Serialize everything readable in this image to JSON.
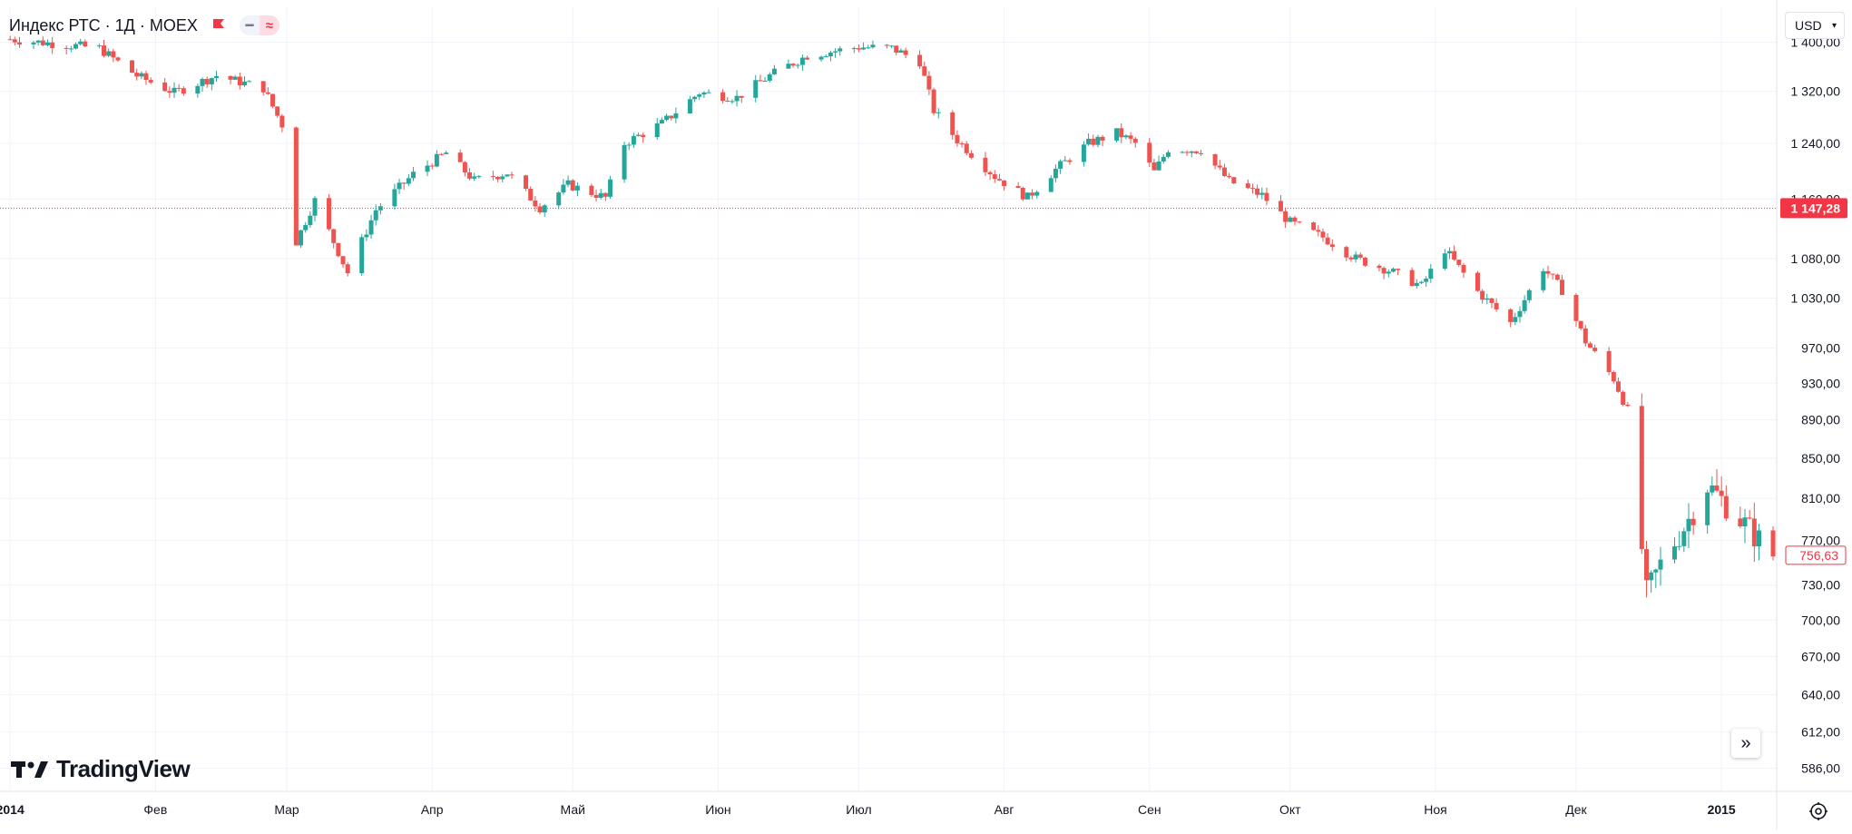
{
  "header": {
    "symbol_title": "Индекс РТС · 1Д · MOEX",
    "currency_button": "USD"
  },
  "branding": {
    "logo_text": "TradingView"
  },
  "colors": {
    "up": "#26a69a",
    "down": "#ef5350",
    "grid": "#f0f3fa",
    "price_line": "#f23645",
    "axis_text": "#131722"
  },
  "icons": {
    "flag": "flag-icon",
    "visibility": "eye-icon",
    "approx": "approx-icon",
    "currency_chevron": "chevron-down-icon",
    "scroll": "double-chevron-right-icon",
    "settings": "gear-icon"
  },
  "chart_data": {
    "type": "candlestick",
    "title": "Индекс РТС · 1Д · MOEX",
    "currency": "USD",
    "y_scale": "log",
    "grid": true,
    "y_ticks": [
      "1 400,00",
      "1 320,00",
      "1 240,00",
      "1 160,00",
      "1 080,00",
      "1 030,00",
      "970,00",
      "930,00",
      "890,00",
      "850,00",
      "810,00",
      "770,00",
      "730,00",
      "700,00",
      "670,00",
      "640,00",
      "612,00",
      "586,00"
    ],
    "x_labels": [
      "2014",
      "Фев",
      "Мар",
      "Апр",
      "Май",
      "Июн",
      "Июл",
      "Авг",
      "Сен",
      "Окт",
      "Ноя",
      "Дек",
      "2015"
    ],
    "price_labels": [
      {
        "value": 1147.28,
        "text": "1 147,28",
        "style": "filled"
      },
      {
        "value": 756.63,
        "text": "756,63",
        "style": "outline"
      }
    ],
    "series": [
      {
        "name": "Индекс РТС",
        "date_labels": [
          "2014-01-01",
          "2014-02-01",
          "2014-03-01",
          "2014-04-01",
          "2014-05-01",
          "2014-06-01",
          "2014-07-01",
          "2014-08-01",
          "2014-09-01",
          "2014-10-01",
          "2014-11-01",
          "2014-12-01",
          "2015-01-01"
        ],
        "close_path": [
          [
            "2014-01-01",
            1405
          ],
          [
            "2014-01-20",
            1390
          ],
          [
            "2014-01-28",
            1345
          ],
          [
            "2014-02-05",
            1318
          ],
          [
            "2014-02-14",
            1345
          ],
          [
            "2014-02-24",
            1325
          ],
          [
            "2014-02-28",
            1268
          ],
          [
            "2014-03-03",
            1102
          ],
          [
            "2014-03-07",
            1158
          ],
          [
            "2014-03-14",
            1062
          ],
          [
            "2014-03-20",
            1145
          ],
          [
            "2014-03-28",
            1195
          ],
          [
            "2014-04-04",
            1226
          ],
          [
            "2014-04-10",
            1186
          ],
          [
            "2014-04-17",
            1197
          ],
          [
            "2014-04-24",
            1148
          ],
          [
            "2014-04-30",
            1180
          ],
          [
            "2014-05-08",
            1162
          ],
          [
            "2014-05-12",
            1240
          ],
          [
            "2014-05-20",
            1270
          ],
          [
            "2014-05-28",
            1318
          ],
          [
            "2014-06-05",
            1310
          ],
          [
            "2014-06-12",
            1345
          ],
          [
            "2014-06-20",
            1378
          ],
          [
            "2014-06-24",
            1383
          ],
          [
            "2014-07-01",
            1392
          ],
          [
            "2014-07-08",
            1390
          ],
          [
            "2014-07-14",
            1368
          ],
          [
            "2014-07-17",
            1290
          ],
          [
            "2014-07-22",
            1245
          ],
          [
            "2014-07-30",
            1192
          ],
          [
            "2014-08-06",
            1162
          ],
          [
            "2014-08-12",
            1202
          ],
          [
            "2014-08-19",
            1240
          ],
          [
            "2014-08-25",
            1256
          ],
          [
            "2014-08-29",
            1240
          ],
          [
            "2014-09-02",
            1198
          ],
          [
            "2014-09-05",
            1232
          ],
          [
            "2014-09-12",
            1230
          ],
          [
            "2014-09-18",
            1185
          ],
          [
            "2014-09-25",
            1165
          ],
          [
            "2014-10-01",
            1128
          ],
          [
            "2014-10-08",
            1108
          ],
          [
            "2014-10-15",
            1080
          ],
          [
            "2014-10-22",
            1065
          ],
          [
            "2014-10-29",
            1045
          ],
          [
            "2014-11-03",
            1092
          ],
          [
            "2014-11-10",
            1038
          ],
          [
            "2014-11-17",
            1000
          ],
          [
            "2014-11-24",
            1068
          ],
          [
            "2014-11-28",
            1040
          ],
          [
            "2014-12-03",
            978
          ],
          [
            "2014-12-09",
            935
          ],
          [
            "2014-12-12",
            900
          ],
          [
            "2014-12-16",
            722
          ],
          [
            "2014-12-19",
            748
          ],
          [
            "2014-12-25",
            790
          ],
          [
            "2014-12-29",
            823
          ],
          [
            "2015-01-05",
            790
          ],
          [
            "2015-01-12",
            756.63
          ]
        ]
      }
    ]
  }
}
